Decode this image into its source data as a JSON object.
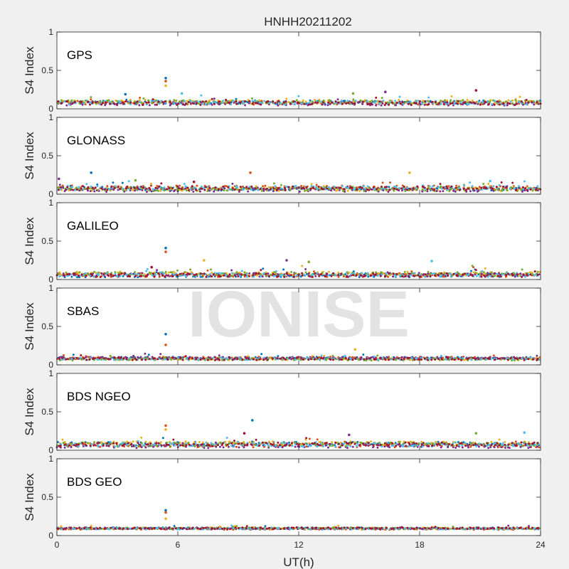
{
  "chart_data": {
    "type": "scatter",
    "title": "HNHH20211202",
    "xlabel": "UT(h)",
    "ylabel": "S4 Index",
    "xlim": [
      0,
      24
    ],
    "ylim": [
      0,
      1
    ],
    "xticks": [
      0,
      6,
      12,
      18,
      24
    ],
    "xtick_labels": [
      "0",
      "6",
      "12",
      "18",
      "24"
    ],
    "yticks": [
      0,
      0.5,
      1
    ],
    "ytick_labels": [
      "0",
      "0.5",
      "1"
    ],
    "grid": false,
    "watermark": "IONISE",
    "series_colors": [
      "#0072bd",
      "#d95319",
      "#edb120",
      "#7e2f8e",
      "#77ac30",
      "#4dbeee",
      "#a2142f"
    ],
    "panels": [
      {
        "label": "GPS",
        "baseline": 0.08,
        "spread": 0.05,
        "spikes": [
          [
            5.4,
            0.4
          ],
          [
            5.4,
            0.36
          ],
          [
            5.4,
            0.3
          ],
          [
            16.3,
            0.22
          ],
          [
            14.7,
            0.2
          ],
          [
            6.2,
            0.2
          ],
          [
            20.8,
            0.24
          ],
          [
            3.4,
            0.19
          ]
        ]
      },
      {
        "label": "GLONASS",
        "baseline": 0.07,
        "spread": 0.05,
        "spikes": [
          [
            1.7,
            0.28
          ],
          [
            9.6,
            0.28
          ],
          [
            17.5,
            0.28
          ],
          [
            0.1,
            0.2
          ],
          [
            3.9,
            0.18
          ],
          [
            21.5,
            0.17
          ],
          [
            6.8,
            0.16
          ]
        ]
      },
      {
        "label": "GALILEO",
        "baseline": 0.07,
        "spread": 0.05,
        "spikes": [
          [
            5.4,
            0.41
          ],
          [
            5.4,
            0.36
          ],
          [
            7.3,
            0.25
          ],
          [
            11.4,
            0.25
          ],
          [
            12.5,
            0.23
          ],
          [
            18.6,
            0.24
          ],
          [
            4.7,
            0.16
          ]
        ]
      },
      {
        "label": "SBAS",
        "baseline": 0.08,
        "spread": 0.03,
        "spikes": [
          [
            5.4,
            0.4
          ],
          [
            5.4,
            0.26
          ],
          [
            14.8,
            0.2
          ]
        ]
      },
      {
        "label": "BDS NGEO",
        "baseline": 0.07,
        "spread": 0.05,
        "spikes": [
          [
            9.7,
            0.39
          ],
          [
            5.4,
            0.32
          ],
          [
            5.4,
            0.27
          ],
          [
            14.5,
            0.2
          ],
          [
            20.8,
            0.22
          ],
          [
            23.2,
            0.23
          ],
          [
            9.3,
            0.22
          ]
        ]
      },
      {
        "label": "BDS GEO",
        "baseline": 0.09,
        "spread": 0.02,
        "spikes": [
          [
            5.4,
            0.33
          ],
          [
            5.4,
            0.3
          ],
          [
            5.4,
            0.22
          ]
        ]
      }
    ]
  }
}
